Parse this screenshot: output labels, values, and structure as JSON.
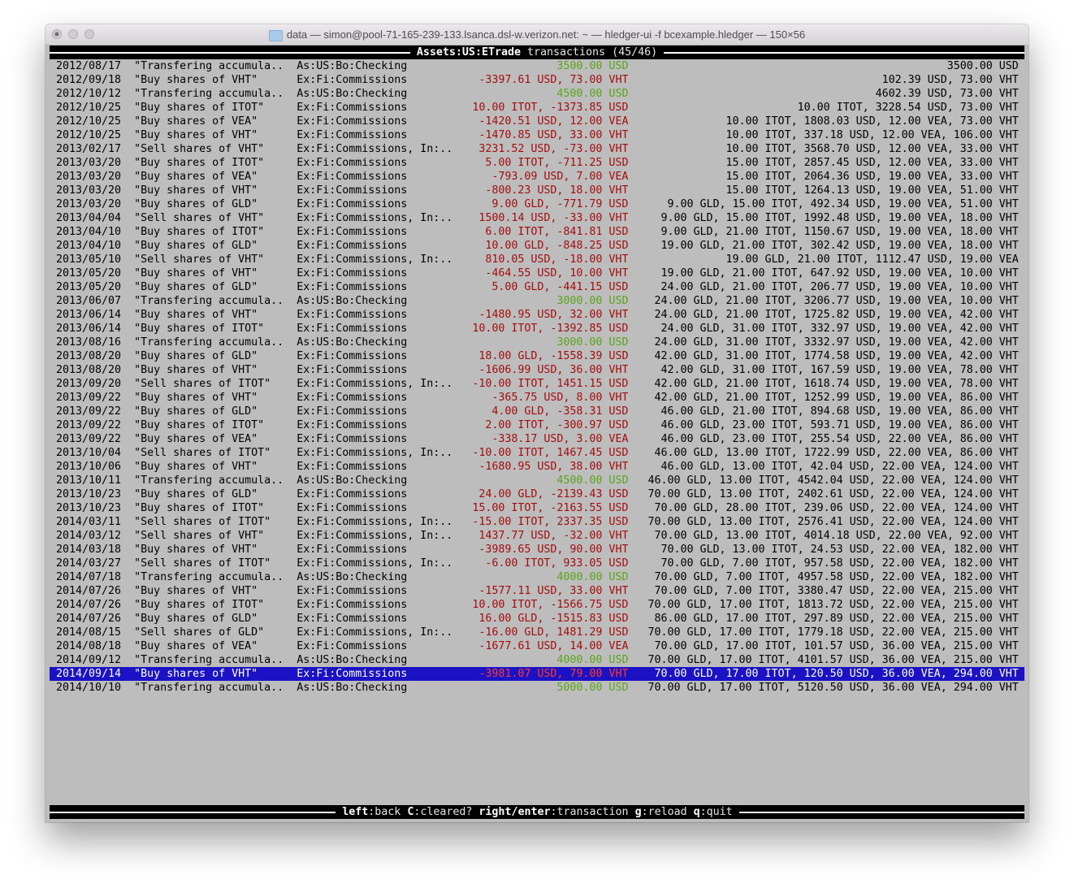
{
  "window": {
    "title": "data — simon@pool-71-165-239-133.lsanca.dsl-w.verizon.net: ~ — hledger-ui -f bcexample.hledger — 150×56"
  },
  "header": {
    "account": "Assets:US:ETrade",
    "label": "transactions (45/46)"
  },
  "colors": {
    "green": "#5aa51a",
    "red": "#a30d0d",
    "selected_bg": "#1a12c4",
    "selected_red": "#ff3b2b",
    "background": "#bdbdbd"
  },
  "selected_index": 44,
  "rows": [
    {
      "date": "2012/08/17",
      "desc": "\"Transfering accumula..",
      "account": "As:US:Bo:Checking",
      "amount": "3500.00 USD",
      "amount_color": "green",
      "balance": "3500.00 USD"
    },
    {
      "date": "2012/09/18",
      "desc": "\"Buy shares of VHT\"",
      "account": "Ex:Fi:Commissions",
      "amount": "-3397.61 USD, 73.00 VHT",
      "amount_color": "red",
      "balance": "102.39 USD, 73.00 VHT"
    },
    {
      "date": "2012/10/12",
      "desc": "\"Transfering accumula..",
      "account": "As:US:Bo:Checking",
      "amount": "4500.00 USD",
      "amount_color": "green",
      "balance": "4602.39 USD, 73.00 VHT"
    },
    {
      "date": "2012/10/25",
      "desc": "\"Buy shares of ITOT\"",
      "account": "Ex:Fi:Commissions",
      "amount": "10.00 ITOT, -1373.85 USD",
      "amount_color": "red",
      "balance": "10.00 ITOT, 3228.54 USD, 73.00 VHT"
    },
    {
      "date": "2012/10/25",
      "desc": "\"Buy shares of VEA\"",
      "account": "Ex:Fi:Commissions",
      "amount": "-1420.51 USD, 12.00 VEA",
      "amount_color": "red",
      "balance": "10.00 ITOT, 1808.03 USD, 12.00 VEA, 73.00 VHT"
    },
    {
      "date": "2012/10/25",
      "desc": "\"Buy shares of VHT\"",
      "account": "Ex:Fi:Commissions",
      "amount": "-1470.85 USD, 33.00 VHT",
      "amount_color": "red",
      "balance": "10.00 ITOT, 337.18 USD, 12.00 VEA, 106.00 VHT"
    },
    {
      "date": "2013/02/17",
      "desc": "\"Sell shares of VHT\"",
      "account": "Ex:Fi:Commissions, In:..",
      "amount": "3231.52 USD, -73.00 VHT",
      "amount_color": "red",
      "balance": "10.00 ITOT, 3568.70 USD, 12.00 VEA, 33.00 VHT"
    },
    {
      "date": "2013/03/20",
      "desc": "\"Buy shares of ITOT\"",
      "account": "Ex:Fi:Commissions",
      "amount": "5.00 ITOT, -711.25 USD",
      "amount_color": "red",
      "balance": "15.00 ITOT, 2857.45 USD, 12.00 VEA, 33.00 VHT"
    },
    {
      "date": "2013/03/20",
      "desc": "\"Buy shares of VEA\"",
      "account": "Ex:Fi:Commissions",
      "amount": "-793.09 USD, 7.00 VEA",
      "amount_color": "red",
      "balance": "15.00 ITOT, 2064.36 USD, 19.00 VEA, 33.00 VHT"
    },
    {
      "date": "2013/03/20",
      "desc": "\"Buy shares of VHT\"",
      "account": "Ex:Fi:Commissions",
      "amount": "-800.23 USD, 18.00 VHT",
      "amount_color": "red",
      "balance": "15.00 ITOT, 1264.13 USD, 19.00 VEA, 51.00 VHT"
    },
    {
      "date": "2013/03/20",
      "desc": "\"Buy shares of GLD\"",
      "account": "Ex:Fi:Commissions",
      "amount": "9.00 GLD, -771.79 USD",
      "amount_color": "red",
      "balance": "9.00 GLD, 15.00 ITOT, 492.34 USD, 19.00 VEA, 51.00 VHT"
    },
    {
      "date": "2013/04/04",
      "desc": "\"Sell shares of VHT\"",
      "account": "Ex:Fi:Commissions, In:..",
      "amount": "1500.14 USD, -33.00 VHT",
      "amount_color": "red",
      "balance": "9.00 GLD, 15.00 ITOT, 1992.48 USD, 19.00 VEA, 18.00 VHT"
    },
    {
      "date": "2013/04/10",
      "desc": "\"Buy shares of ITOT\"",
      "account": "Ex:Fi:Commissions",
      "amount": "6.00 ITOT, -841.81 USD",
      "amount_color": "red",
      "balance": "9.00 GLD, 21.00 ITOT, 1150.67 USD, 19.00 VEA, 18.00 VHT"
    },
    {
      "date": "2013/04/10",
      "desc": "\"Buy shares of GLD\"",
      "account": "Ex:Fi:Commissions",
      "amount": "10.00 GLD, -848.25 USD",
      "amount_color": "red",
      "balance": "19.00 GLD, 21.00 ITOT, 302.42 USD, 19.00 VEA, 18.00 VHT"
    },
    {
      "date": "2013/05/10",
      "desc": "\"Sell shares of VHT\"",
      "account": "Ex:Fi:Commissions, In:..",
      "amount": "810.05 USD, -18.00 VHT",
      "amount_color": "red",
      "balance": "19.00 GLD, 21.00 ITOT, 1112.47 USD, 19.00 VEA"
    },
    {
      "date": "2013/05/20",
      "desc": "\"Buy shares of VHT\"",
      "account": "Ex:Fi:Commissions",
      "amount": "-464.55 USD, 10.00 VHT",
      "amount_color": "red",
      "balance": "19.00 GLD, 21.00 ITOT, 647.92 USD, 19.00 VEA, 10.00 VHT"
    },
    {
      "date": "2013/05/20",
      "desc": "\"Buy shares of GLD\"",
      "account": "Ex:Fi:Commissions",
      "amount": "5.00 GLD, -441.15 USD",
      "amount_color": "red",
      "balance": "24.00 GLD, 21.00 ITOT, 206.77 USD, 19.00 VEA, 10.00 VHT"
    },
    {
      "date": "2013/06/07",
      "desc": "\"Transfering accumula..",
      "account": "As:US:Bo:Checking",
      "amount": "3000.00 USD",
      "amount_color": "green",
      "balance": "24.00 GLD, 21.00 ITOT, 3206.77 USD, 19.00 VEA, 10.00 VHT"
    },
    {
      "date": "2013/06/14",
      "desc": "\"Buy shares of VHT\"",
      "account": "Ex:Fi:Commissions",
      "amount": "-1480.95 USD, 32.00 VHT",
      "amount_color": "red",
      "balance": "24.00 GLD, 21.00 ITOT, 1725.82 USD, 19.00 VEA, 42.00 VHT"
    },
    {
      "date": "2013/06/14",
      "desc": "\"Buy shares of ITOT\"",
      "account": "Ex:Fi:Commissions",
      "amount": "10.00 ITOT, -1392.85 USD",
      "amount_color": "red",
      "balance": "24.00 GLD, 31.00 ITOT, 332.97 USD, 19.00 VEA, 42.00 VHT"
    },
    {
      "date": "2013/08/16",
      "desc": "\"Transfering accumula..",
      "account": "As:US:Bo:Checking",
      "amount": "3000.00 USD",
      "amount_color": "green",
      "balance": "24.00 GLD, 31.00 ITOT, 3332.97 USD, 19.00 VEA, 42.00 VHT"
    },
    {
      "date": "2013/08/20",
      "desc": "\"Buy shares of GLD\"",
      "account": "Ex:Fi:Commissions",
      "amount": "18.00 GLD, -1558.39 USD",
      "amount_color": "red",
      "balance": "42.00 GLD, 31.00 ITOT, 1774.58 USD, 19.00 VEA, 42.00 VHT"
    },
    {
      "date": "2013/08/20",
      "desc": "\"Buy shares of VHT\"",
      "account": "Ex:Fi:Commissions",
      "amount": "-1606.99 USD, 36.00 VHT",
      "amount_color": "red",
      "balance": "42.00 GLD, 31.00 ITOT, 167.59 USD, 19.00 VEA, 78.00 VHT"
    },
    {
      "date": "2013/09/20",
      "desc": "\"Sell shares of ITOT\"",
      "account": "Ex:Fi:Commissions, In:..",
      "amount": "-10.00 ITOT, 1451.15 USD",
      "amount_color": "red",
      "balance": "42.00 GLD, 21.00 ITOT, 1618.74 USD, 19.00 VEA, 78.00 VHT"
    },
    {
      "date": "2013/09/22",
      "desc": "\"Buy shares of VHT\"",
      "account": "Ex:Fi:Commissions",
      "amount": "-365.75 USD, 8.00 VHT",
      "amount_color": "red",
      "balance": "42.00 GLD, 21.00 ITOT, 1252.99 USD, 19.00 VEA, 86.00 VHT"
    },
    {
      "date": "2013/09/22",
      "desc": "\"Buy shares of GLD\"",
      "account": "Ex:Fi:Commissions",
      "amount": "4.00 GLD, -358.31 USD",
      "amount_color": "red",
      "balance": "46.00 GLD, 21.00 ITOT, 894.68 USD, 19.00 VEA, 86.00 VHT"
    },
    {
      "date": "2013/09/22",
      "desc": "\"Buy shares of ITOT\"",
      "account": "Ex:Fi:Commissions",
      "amount": "2.00 ITOT, -300.97 USD",
      "amount_color": "red",
      "balance": "46.00 GLD, 23.00 ITOT, 593.71 USD, 19.00 VEA, 86.00 VHT"
    },
    {
      "date": "2013/09/22",
      "desc": "\"Buy shares of VEA\"",
      "account": "Ex:Fi:Commissions",
      "amount": "-338.17 USD, 3.00 VEA",
      "amount_color": "red",
      "balance": "46.00 GLD, 23.00 ITOT, 255.54 USD, 22.00 VEA, 86.00 VHT"
    },
    {
      "date": "2013/10/04",
      "desc": "\"Sell shares of ITOT\"",
      "account": "Ex:Fi:Commissions, In:..",
      "amount": "-10.00 ITOT, 1467.45 USD",
      "amount_color": "red",
      "balance": "46.00 GLD, 13.00 ITOT, 1722.99 USD, 22.00 VEA, 86.00 VHT"
    },
    {
      "date": "2013/10/06",
      "desc": "\"Buy shares of VHT\"",
      "account": "Ex:Fi:Commissions",
      "amount": "-1680.95 USD, 38.00 VHT",
      "amount_color": "red",
      "balance": "46.00 GLD, 13.00 ITOT, 42.04 USD, 22.00 VEA, 124.00 VHT"
    },
    {
      "date": "2013/10/11",
      "desc": "\"Transfering accumula..",
      "account": "As:US:Bo:Checking",
      "amount": "4500.00 USD",
      "amount_color": "green",
      "balance": "46.00 GLD, 13.00 ITOT, 4542.04 USD, 22.00 VEA, 124.00 VHT"
    },
    {
      "date": "2013/10/23",
      "desc": "\"Buy shares of GLD\"",
      "account": "Ex:Fi:Commissions",
      "amount": "24.00 GLD, -2139.43 USD",
      "amount_color": "red",
      "balance": "70.00 GLD, 13.00 ITOT, 2402.61 USD, 22.00 VEA, 124.00 VHT"
    },
    {
      "date": "2013/10/23",
      "desc": "\"Buy shares of ITOT\"",
      "account": "Ex:Fi:Commissions",
      "amount": "15.00 ITOT, -2163.55 USD",
      "amount_color": "red",
      "balance": "70.00 GLD, 28.00 ITOT, 239.06 USD, 22.00 VEA, 124.00 VHT"
    },
    {
      "date": "2014/03/11",
      "desc": "\"Sell shares of ITOT\"",
      "account": "Ex:Fi:Commissions, In:..",
      "amount": "-15.00 ITOT, 2337.35 USD",
      "amount_color": "red",
      "balance": "70.00 GLD, 13.00 ITOT, 2576.41 USD, 22.00 VEA, 124.00 VHT"
    },
    {
      "date": "2014/03/12",
      "desc": "\"Sell shares of VHT\"",
      "account": "Ex:Fi:Commissions, In:..",
      "amount": "1437.77 USD, -32.00 VHT",
      "amount_color": "red",
      "balance": "70.00 GLD, 13.00 ITOT, 4014.18 USD, 22.00 VEA, 92.00 VHT"
    },
    {
      "date": "2014/03/18",
      "desc": "\"Buy shares of VHT\"",
      "account": "Ex:Fi:Commissions",
      "amount": "-3989.65 USD, 90.00 VHT",
      "amount_color": "red",
      "balance": "70.00 GLD, 13.00 ITOT, 24.53 USD, 22.00 VEA, 182.00 VHT"
    },
    {
      "date": "2014/03/27",
      "desc": "\"Sell shares of ITOT\"",
      "account": "Ex:Fi:Commissions, In:..",
      "amount": "-6.00 ITOT, 933.05 USD",
      "amount_color": "red",
      "balance": "70.00 GLD, 7.00 ITOT, 957.58 USD, 22.00 VEA, 182.00 VHT"
    },
    {
      "date": "2014/07/18",
      "desc": "\"Transfering accumula..",
      "account": "As:US:Bo:Checking",
      "amount": "4000.00 USD",
      "amount_color": "green",
      "balance": "70.00 GLD, 7.00 ITOT, 4957.58 USD, 22.00 VEA, 182.00 VHT"
    },
    {
      "date": "2014/07/26",
      "desc": "\"Buy shares of VHT\"",
      "account": "Ex:Fi:Commissions",
      "amount": "-1577.11 USD, 33.00 VHT",
      "amount_color": "red",
      "balance": "70.00 GLD, 7.00 ITOT, 3380.47 USD, 22.00 VEA, 215.00 VHT"
    },
    {
      "date": "2014/07/26",
      "desc": "\"Buy shares of ITOT\"",
      "account": "Ex:Fi:Commissions",
      "amount": "10.00 ITOT, -1566.75 USD",
      "amount_color": "red",
      "balance": "70.00 GLD, 17.00 ITOT, 1813.72 USD, 22.00 VEA, 215.00 VHT"
    },
    {
      "date": "2014/07/26",
      "desc": "\"Buy shares of GLD\"",
      "account": "Ex:Fi:Commissions",
      "amount": "16.00 GLD, -1515.83 USD",
      "amount_color": "red",
      "balance": "86.00 GLD, 17.00 ITOT, 297.89 USD, 22.00 VEA, 215.00 VHT"
    },
    {
      "date": "2014/08/15",
      "desc": "\"Sell shares of GLD\"",
      "account": "Ex:Fi:Commissions, In:..",
      "amount": "-16.00 GLD, 1481.29 USD",
      "amount_color": "red",
      "balance": "70.00 GLD, 17.00 ITOT, 1779.18 USD, 22.00 VEA, 215.00 VHT"
    },
    {
      "date": "2014/08/18",
      "desc": "\"Buy shares of VEA\"",
      "account": "Ex:Fi:Commissions",
      "amount": "-1677.61 USD, 14.00 VEA",
      "amount_color": "red",
      "balance": "70.00 GLD, 17.00 ITOT, 101.57 USD, 36.00 VEA, 215.00 VHT"
    },
    {
      "date": "2014/09/12",
      "desc": "\"Transfering accumula..",
      "account": "As:US:Bo:Checking",
      "amount": "4000.00 USD",
      "amount_color": "green",
      "balance": "70.00 GLD, 17.00 ITOT, 4101.57 USD, 36.00 VEA, 215.00 VHT"
    },
    {
      "date": "2014/09/14",
      "desc": "\"Buy shares of VHT\"",
      "account": "Ex:Fi:Commissions",
      "amount": "-3981.07 USD, 79.00 VHT",
      "amount_color": "red",
      "balance": "70.00 GLD, 17.00 ITOT, 120.50 USD, 36.00 VEA, 294.00 VHT"
    },
    {
      "date": "2014/10/10",
      "desc": "\"Transfering accumula..",
      "account": "As:US:Bo:Checking",
      "amount": "5000.00 USD",
      "amount_color": "green",
      "balance": "70.00 GLD, 17.00 ITOT, 5120.50 USD, 36.00 VEA, 294.00 VHT"
    }
  ],
  "footer": [
    {
      "key": "left",
      "label": ":back"
    },
    {
      "key": "C",
      "label": ":cleared?"
    },
    {
      "key": "right/enter",
      "label": ":transaction"
    },
    {
      "key": "g",
      "label": ":reload"
    },
    {
      "key": "q",
      "label": ":quit"
    }
  ]
}
